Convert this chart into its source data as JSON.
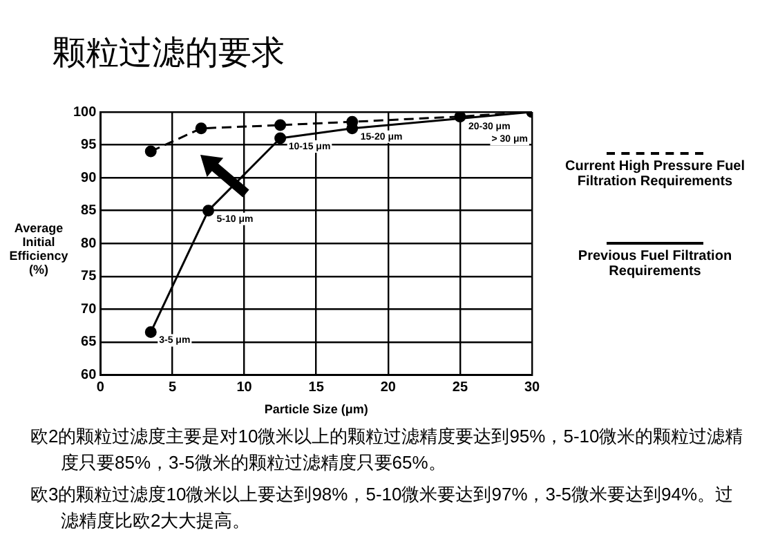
{
  "chart_data": {
    "type": "line",
    "title": "颗粒过滤的要求",
    "xlabel": "Particle Size (μm)",
    "ylabel": "Average Initial Efficiency (%)",
    "xlim": [
      0,
      30
    ],
    "xticks": [
      0,
      5,
      10,
      15,
      20,
      25,
      30
    ],
    "ylim": [
      60,
      100
    ],
    "yticks": [
      60,
      65,
      70,
      75,
      80,
      85,
      90,
      95,
      100
    ],
    "grid": true,
    "legend": "right",
    "marker": "circle",
    "series": [
      {
        "name": "Current High Pressure Fuel Filtration Requirements",
        "color": "#000000",
        "line_style": "dashed",
        "x": [
          3.5,
          7,
          12.5,
          17.5,
          25,
          30
        ],
        "values": [
          94,
          97.5,
          98,
          98.5,
          99.3,
          100
        ]
      },
      {
        "name": "Previous Fuel Filtration Requirements",
        "color": "#000000",
        "line_style": "solid",
        "x": [
          3.5,
          7.5,
          12.5,
          17.5,
          25,
          30
        ],
        "values": [
          66.5,
          85,
          96,
          97.5,
          null,
          100
        ]
      }
    ],
    "annotations": [
      {
        "text": "3-5 μm",
        "x": 3.5,
        "y": 66.5
      },
      {
        "text": "5-10 μm",
        "x": 7.5,
        "y": 85
      },
      {
        "text": "10-15 μm",
        "x": 12.5,
        "y": 96
      },
      {
        "text": "15-20 μm",
        "x": 17.5,
        "y": 97.5
      },
      {
        "text": "20-30 μm",
        "x": 25,
        "y": 99
      },
      {
        "text": "> 30 μm",
        "x": 30,
        "y": 100
      },
      "欧2的颗粒过滤度主要是对10微米以上的颗粒过滤精度要达到95%，5-10微米的颗粒过滤精度只要85%，3-5微米的颗粒过滤精度只要65%。",
      "欧3的颗粒过滤度10微米以上要达到98%，5-10微米要达到97%，3-5微米要达到94%。过滤精度比欧2大大提高。"
    ]
  }
}
